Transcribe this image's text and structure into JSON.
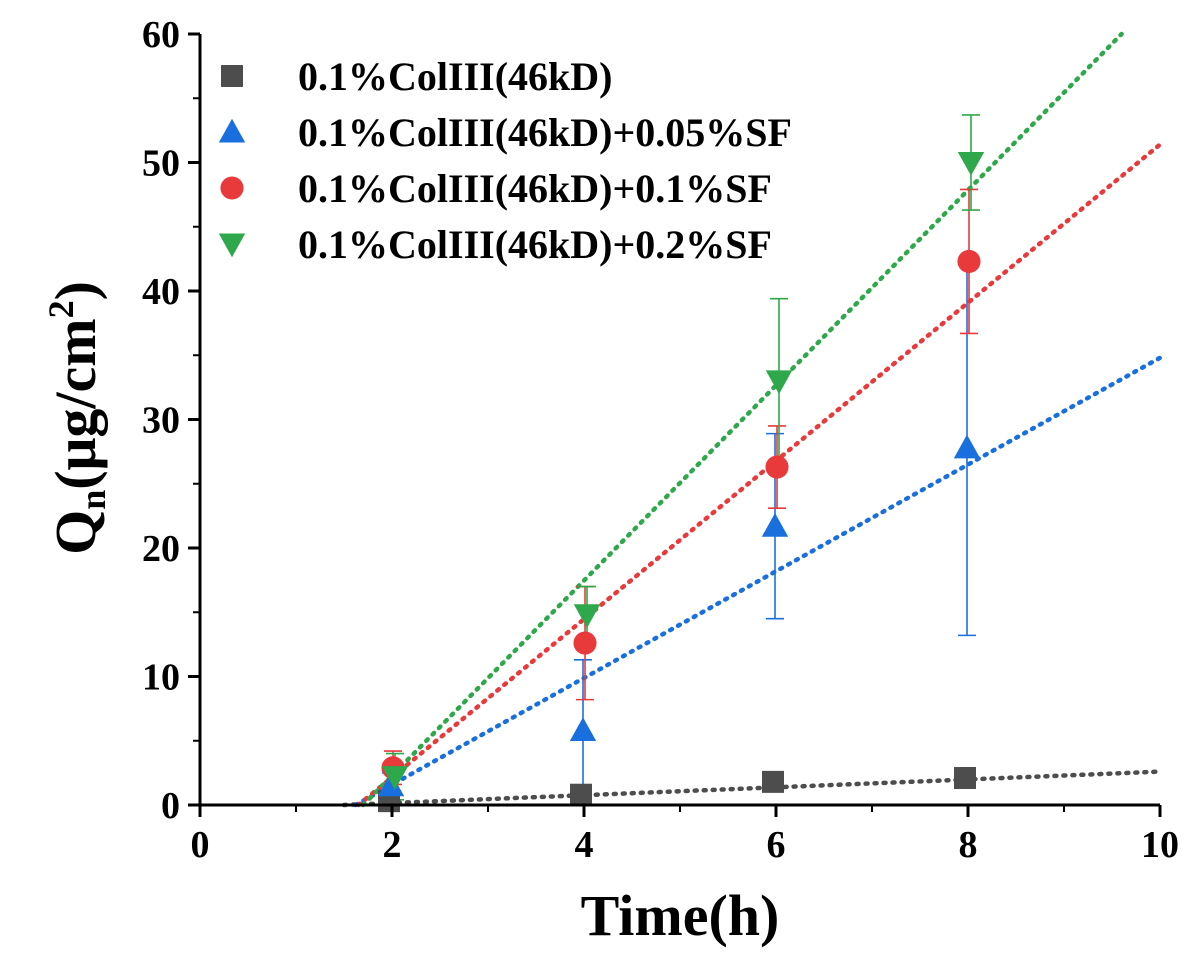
{
  "chart_data": {
    "type": "scatter",
    "xlabel": "Time(h)",
    "ylabel_main": "Q",
    "ylabel_sub": "n",
    "ylabel_rest": "(μg/cm",
    "ylabel_sup": "2",
    "ylabel_close": ")",
    "xlim": [
      0,
      10
    ],
    "ylim": [
      0,
      60
    ],
    "xticks": [
      0,
      2,
      4,
      6,
      8,
      10
    ],
    "yticks": [
      0,
      10,
      20,
      30,
      40,
      50,
      60
    ],
    "grid": false,
    "legend_position": "top-left",
    "series": [
      {
        "name": "0.1%ColIII(46kD)",
        "marker": "square",
        "color": "#4d4d4d",
        "x": [
          2,
          4,
          6,
          8
        ],
        "y": [
          0.3,
          0.8,
          1.8,
          2.1
        ],
        "error": [
          0.2,
          0.3,
          0.4,
          0.5
        ],
        "fit": {
          "x": [
            1.5,
            10
          ],
          "y": [
            0.0,
            2.6
          ]
        }
      },
      {
        "name": "0.1%ColIII(46kD)+0.05%SF",
        "marker": "triangle-up",
        "color": "#1a6fdf",
        "x": [
          2,
          4,
          6,
          8
        ],
        "y": [
          1.5,
          5.8,
          21.7,
          27.8
        ],
        "error": [
          1.0,
          5.5,
          7.2,
          14.6
        ],
        "fit": {
          "x": [
            1.62,
            10
          ],
          "y": [
            0.0,
            34.8
          ]
        }
      },
      {
        "name": "0.1%ColIII(46kD)+0.1%SF",
        "marker": "circle",
        "color": "#e8393b",
        "x": [
          2,
          4,
          6,
          8
        ],
        "y": [
          2.9,
          12.6,
          26.3,
          42.3
        ],
        "error": [
          1.3,
          4.4,
          3.2,
          5.6
        ],
        "fit": {
          "x": [
            1.65,
            10
          ],
          "y": [
            0.0,
            51.4
          ]
        }
      },
      {
        "name": "0.1%ColIII(46kD)+0.2%SF",
        "marker": "triangle-down",
        "color": "#2ea84a",
        "x": [
          2,
          4,
          6,
          8
        ],
        "y": [
          2.2,
          14.8,
          33.0,
          50.0
        ],
        "error": [
          1.8,
          2.2,
          6.4,
          3.7
        ],
        "fit": {
          "x": [
            1.7,
            9.6
          ],
          "y": [
            0.0,
            60.0
          ]
        }
      }
    ]
  }
}
